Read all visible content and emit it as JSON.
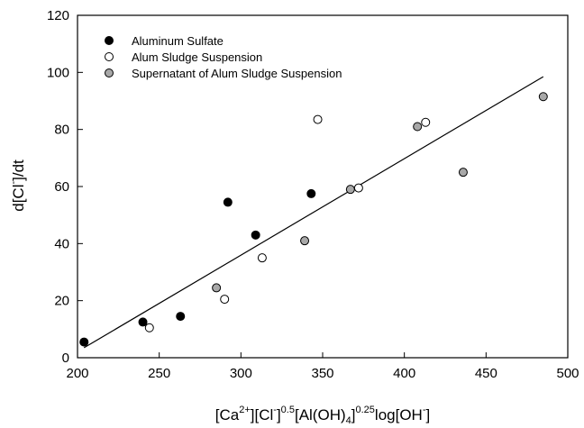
{
  "chart_data": {
    "type": "scatter",
    "xlabel": "[Ca2+][Cl-]0.5[Al(OH)4-]0.25log[OH-]",
    "ylabel": "d[Cl-]/dt",
    "xlim": [
      200,
      500
    ],
    "ylim": [
      0,
      120
    ],
    "x_ticks": [
      200,
      250,
      300,
      350,
      400,
      450,
      500
    ],
    "y_ticks": [
      0,
      20,
      40,
      60,
      80,
      100,
      120
    ],
    "grid": false,
    "legend_position": "top-left",
    "series": [
      {
        "name": "Aluminum Sulfate",
        "marker": "filled-circle",
        "color": "#000000",
        "points": [
          {
            "x": 204,
            "y": 5.5
          },
          {
            "x": 240,
            "y": 12.5
          },
          {
            "x": 263,
            "y": 14.5
          },
          {
            "x": 292,
            "y": 54.5
          },
          {
            "x": 309,
            "y": 43
          },
          {
            "x": 343,
            "y": 57.5
          }
        ]
      },
      {
        "name": "Alum Sludge Suspension",
        "marker": "open-circle",
        "color": "#ffffff",
        "points": [
          {
            "x": 244,
            "y": 10.5
          },
          {
            "x": 290,
            "y": 20.5
          },
          {
            "x": 313,
            "y": 35
          },
          {
            "x": 347,
            "y": 83.5
          },
          {
            "x": 372,
            "y": 59.5
          },
          {
            "x": 413,
            "y": 82.5
          }
        ]
      },
      {
        "name": "Supernatant of Alum Sludge Suspension",
        "marker": "gray-circle",
        "color": "#a8a8a8",
        "points": [
          {
            "x": 285,
            "y": 24.5
          },
          {
            "x": 339,
            "y": 41
          },
          {
            "x": 367,
            "y": 59
          },
          {
            "x": 408,
            "y": 81
          },
          {
            "x": 436,
            "y": 65
          },
          {
            "x": 485,
            "y": 91.5
          }
        ]
      }
    ],
    "trendline": {
      "x": [
        204,
        485
      ],
      "y": [
        3.5,
        98.5
      ]
    }
  }
}
